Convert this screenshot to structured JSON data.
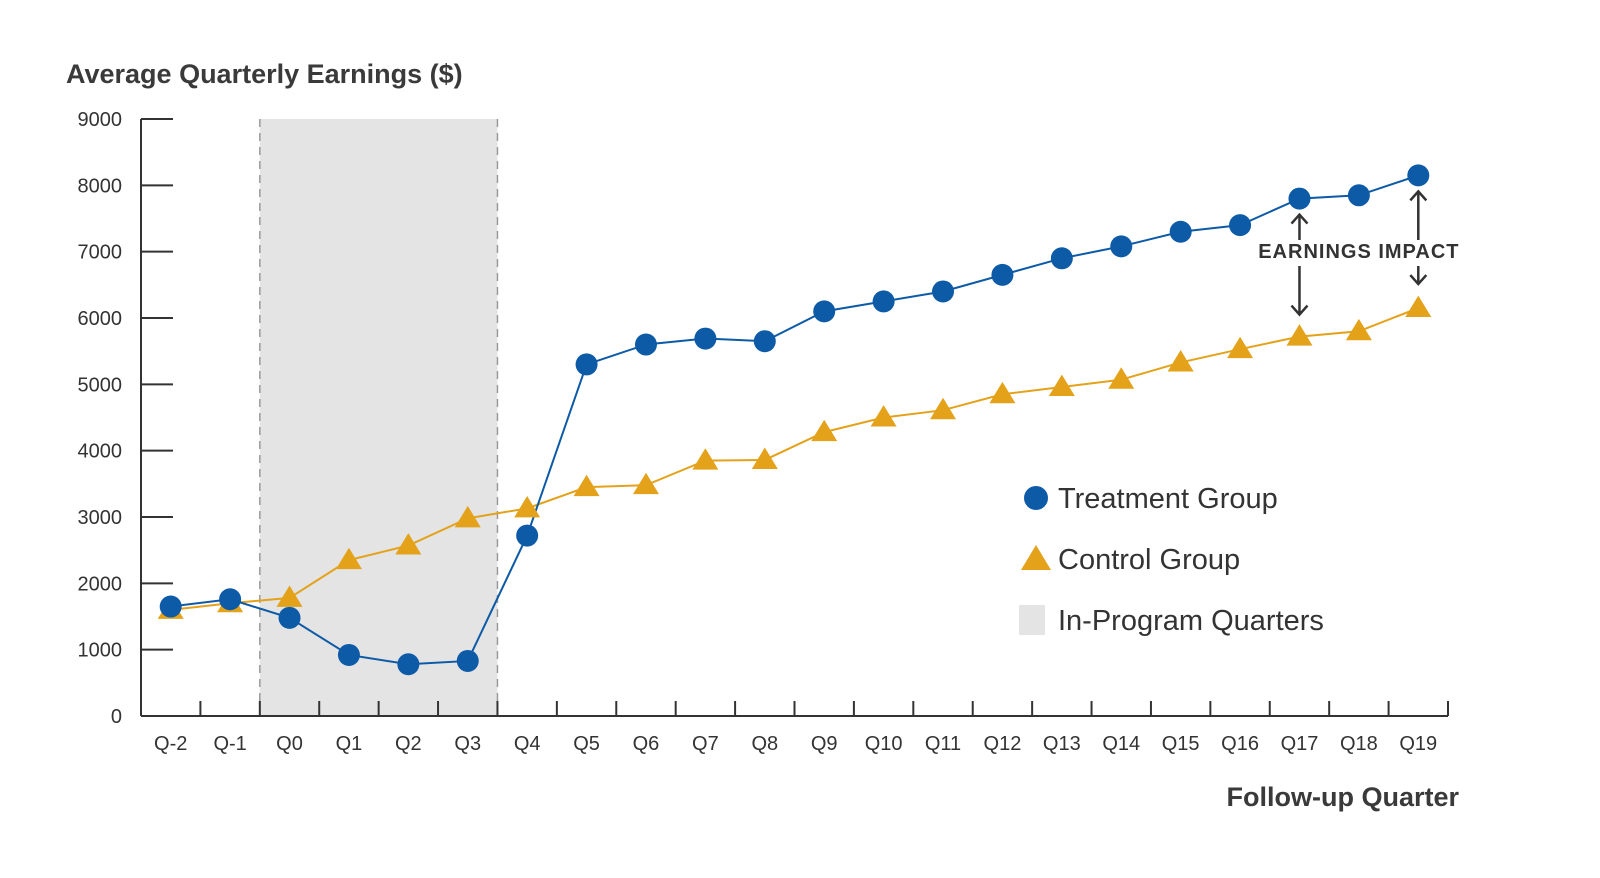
{
  "chart_data": {
    "type": "line",
    "ylabel": "Average Quarterly Earnings ($)",
    "xlabel": "Follow-up Quarter",
    "ylim": [
      0,
      9000
    ],
    "yticks": [
      "0",
      "1000",
      "2000",
      "3000",
      "4000",
      "5000",
      "6000",
      "7000",
      "8000",
      "9000"
    ],
    "categories": [
      "Q-2",
      "Q-1",
      "Q0",
      "Q1",
      "Q2",
      "Q3",
      "Q4",
      "Q5",
      "Q6",
      "Q7",
      "Q8",
      "Q9",
      "Q10",
      "Q11",
      "Q12",
      "Q13",
      "Q14",
      "Q15",
      "Q16",
      "Q17",
      "Q18",
      "Q19"
    ],
    "series": [
      {
        "name": "Treatment Group",
        "marker": "circle",
        "color": "#0d5aa7",
        "values": [
          1650,
          1760,
          1480,
          920,
          780,
          830,
          2720,
          5300,
          5600,
          5690,
          5650,
          6100,
          6250,
          6400,
          6650,
          6900,
          7080,
          7300,
          7400,
          7800,
          7850,
          8150
        ]
      },
      {
        "name": "Control Group",
        "marker": "triangle",
        "color": "#e3a21a",
        "values": [
          1600,
          1700,
          1780,
          2350,
          2570,
          2980,
          3130,
          3450,
          3480,
          3850,
          3860,
          4280,
          4500,
          4610,
          4850,
          4960,
          5070,
          5330,
          5530,
          5720,
          5800,
          6150
        ]
      }
    ],
    "shaded_region": {
      "name": "In-Program Quarters",
      "from_category": "Q0",
      "to_category": "Q3",
      "color": "#e4e4e4"
    },
    "annotation": {
      "text": "EARNINGS IMPACT",
      "at_categories": [
        "Q17",
        "Q19"
      ]
    },
    "legend": {
      "position": "right",
      "entries": [
        "Treatment Group",
        "Control Group",
        "In-Program Quarters"
      ]
    }
  }
}
